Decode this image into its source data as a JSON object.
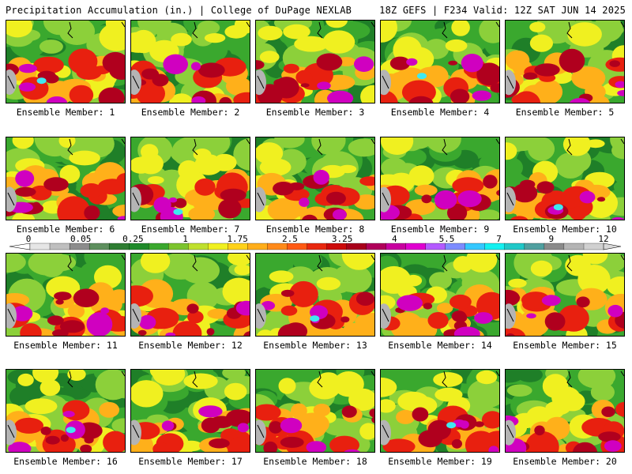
{
  "header": {
    "left": "Precipitation Accumulation (in.) | College of DuPage NEXLAB",
    "right": "18Z GEFS | F234 Valid: 12Z SAT JUN 14 2025"
  },
  "caption_prefix": "Ensemble Member:",
  "members": [
    "1",
    "2",
    "3",
    "4",
    "5",
    "6",
    "7",
    "8",
    "9",
    "10",
    "11",
    "12",
    "13",
    "14",
    "15",
    "16",
    "17",
    "18",
    "19",
    "20"
  ],
  "colorbar": {
    "labels": [
      "0",
      "0.05",
      "0.25",
      "1",
      "1.75",
      "2.5",
      "3.25",
      "4",
      "5.5",
      "7",
      "9",
      "12"
    ],
    "colors": [
      "#e6e6e6",
      "#bfbfbf",
      "#8c8c8c",
      "#5e8f5e",
      "#2e7d32",
      "#1f8a2a",
      "#3aa82e",
      "#7cc42e",
      "#bfe02e",
      "#f0f020",
      "#ffd21a",
      "#ffae1a",
      "#ff8a1a",
      "#ff5a14",
      "#e8280f",
      "#cc0a0a",
      "#a8001a",
      "#b0005a",
      "#c800a0",
      "#e000d0",
      "#b45aff",
      "#7d8cff",
      "#35c8ff",
      "#14f0f0",
      "#20c8c8",
      "#50a0a0",
      "#8a8a8a",
      "#b4b4b4",
      "#d0d0d0"
    ]
  },
  "map_colors": {
    "dark_green": "#1f7f28",
    "green": "#3aa82e",
    "light_green": "#8cd03a",
    "yellow": "#f0f020",
    "orange": "#ffb01a",
    "red": "#e8200f",
    "dark_red": "#b0001e",
    "magenta": "#d000c0",
    "cyan": "#40e8f0",
    "gray": "#b4b4b4"
  }
}
